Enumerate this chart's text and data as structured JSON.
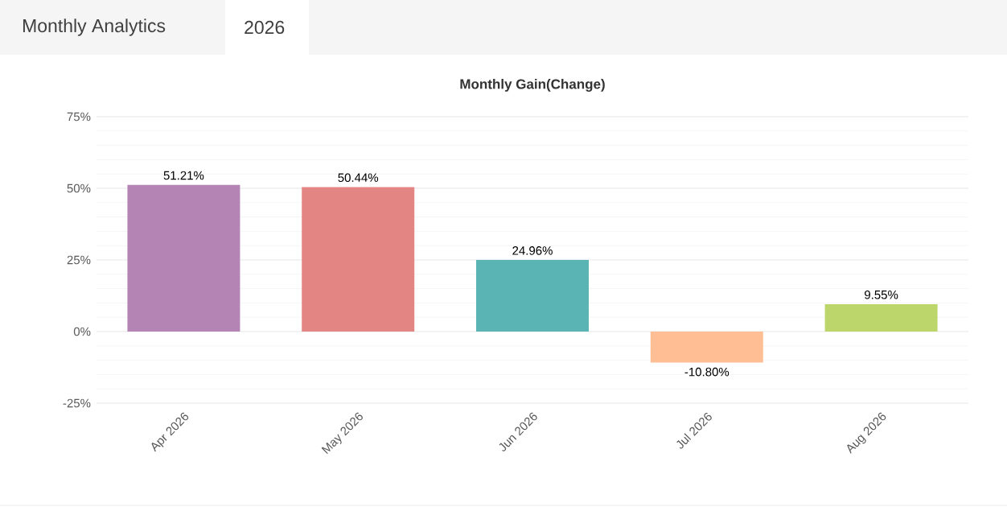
{
  "chart_data": {
    "type": "bar",
    "title": "Monthly Gain(Change)",
    "annotations": [
      "Monthly Analytics",
      "2026"
    ],
    "categories": [
      "Apr 2026",
      "May 2026",
      "Jun 2026",
      "Jul 2026",
      "Aug 2026"
    ],
    "values": [
      51.21,
      50.44,
      24.96,
      -10.8,
      9.55
    ],
    "colors": [
      "#b484b4",
      "#e38683",
      "#5ab4b4",
      "#ffbe94",
      "#bcd66b"
    ],
    "value_labels": [
      "51.21%",
      "50.44%",
      "24.96%",
      "-10.80%",
      "9.55%"
    ],
    "ylim": [
      -25,
      75
    ],
    "yticks": [
      {
        "value": -25,
        "label": "-25%"
      },
      {
        "value": 0,
        "label": "0%"
      },
      {
        "value": 25,
        "label": "25%"
      },
      {
        "value": 50,
        "label": "50%"
      },
      {
        "value": 75,
        "label": "75%"
      }
    ],
    "grid": "y"
  }
}
